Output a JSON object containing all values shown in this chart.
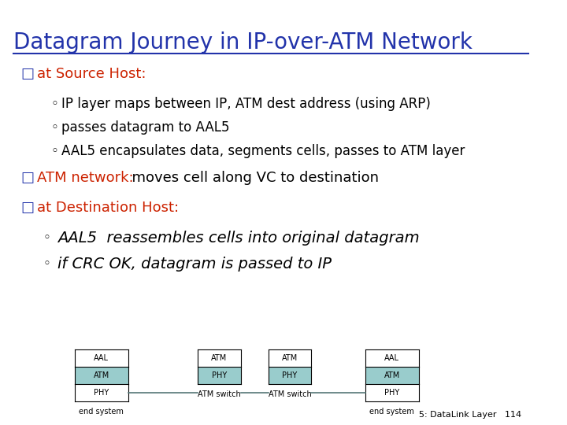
{
  "title": "Datagram Journey in IP-over-ATM Network",
  "title_color": "#2233aa",
  "bg_color": "#ffffff",
  "slide_num": "5: DataLink Layer   114",
  "sections": [
    {
      "bullet_text": "at Source Host:",
      "bullet_text_color": "#cc2200",
      "sub_items": [
        "IP layer maps between IP, ATM dest address (using ARP)",
        "passes datagram to AAL5",
        "AAL5 encapsulates data, segments cells, passes to ATM layer"
      ]
    },
    {
      "bullet_text": "ATM network:",
      "bullet_text_color": "#cc2200",
      "extra_text": "  moves cell along VC to destination",
      "extra_text_color": "#000000",
      "sub_items": []
    },
    {
      "bullet_text": "at Destination Host:",
      "bullet_text_color": "#cc2200",
      "sub_items": [
        "AAL5  reassembles cells into original datagram",
        "if CRC OK, datagram is passed to IP"
      ]
    }
  ]
}
